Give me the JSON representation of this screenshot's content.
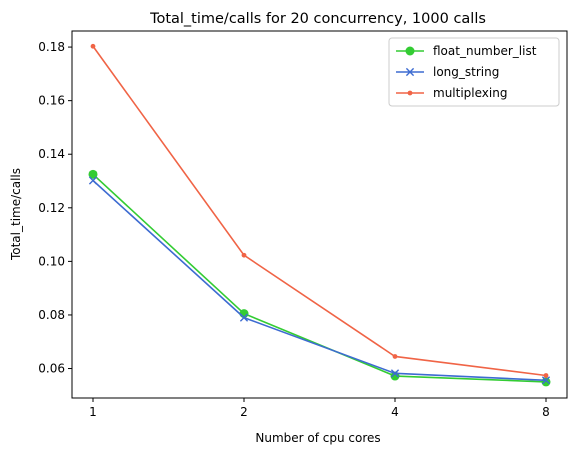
{
  "chart_data": {
    "type": "line",
    "title": "Total_time/calls for 20 concurrency, 1000 calls",
    "xlabel": "Number of cpu cores",
    "ylabel": "Total_time/calls",
    "x": [
      1,
      2,
      4,
      8
    ],
    "x_tick_labels": [
      "1",
      "2",
      "4",
      "8"
    ],
    "x_scale": "log2",
    "ylim": [
      0.049,
      0.186
    ],
    "y_ticks": [
      0.06,
      0.08,
      0.1,
      0.12,
      0.14,
      0.16,
      0.18
    ],
    "y_tick_labels": [
      "0.06",
      "0.08",
      "0.10",
      "0.12",
      "0.14",
      "0.16",
      "0.18"
    ],
    "grid": false,
    "legend_position": "top-right",
    "series": [
      {
        "name": "float_number_list",
        "color": "#33cc33",
        "marker": "circle",
        "values": [
          0.1325,
          0.0805,
          0.0572,
          0.055
        ]
      },
      {
        "name": "long_string",
        "color": "#3d6bd1",
        "marker": "x",
        "values": [
          0.1302,
          0.079,
          0.0582,
          0.0556
        ]
      },
      {
        "name": "multiplexing",
        "color": "#f06446",
        "marker": "dot",
        "values": [
          0.1803,
          0.1023,
          0.0645,
          0.0574
        ]
      }
    ]
  }
}
